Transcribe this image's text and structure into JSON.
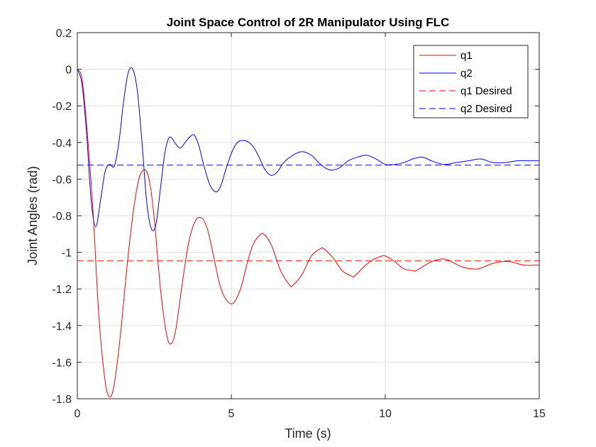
{
  "figure": {
    "background": "#ffffff",
    "axes_color": "#262626",
    "grid_color": "#dfdfdf"
  },
  "chart_data": {
    "type": "line",
    "title": "Joint Space Control of 2R Manipulator Using FLC",
    "xlabel": "Time (s)",
    "ylabel": "Joint Angles (rad)",
    "xlim": [
      0,
      15
    ],
    "ylim": [
      -1.8,
      0.2
    ],
    "xticks": [
      0,
      5,
      10,
      15
    ],
    "xtick_labels": [
      "0",
      "5",
      "10",
      "15"
    ],
    "yticks": [
      0.2,
      0,
      -0.2,
      -0.4,
      -0.6,
      -0.8,
      -1,
      -1.2,
      -1.4,
      -1.6,
      -1.8
    ],
    "ytick_labels": [
      "0.2",
      "0",
      "-0.2",
      "-0.4",
      "-0.6",
      "-0.8",
      "-1",
      "-1.2",
      "-1.4",
      "-1.6",
      "-1.8"
    ],
    "grid": true,
    "legend_position": "top-right",
    "series": [
      {
        "name": "q1",
        "color": "#ff0000",
        "style": "solid",
        "x": [
          0,
          0.15,
          0.3,
          0.5,
          0.7,
          0.9,
          1.05,
          1.2,
          1.4,
          1.6,
          1.8,
          2.0,
          2.2,
          2.35,
          2.5,
          2.7,
          2.9,
          3.05,
          3.2,
          3.4,
          3.6,
          3.8,
          4.0,
          4.2,
          4.4,
          4.6,
          4.8,
          5.05,
          5.3,
          5.5,
          5.7,
          5.9,
          6.05,
          6.3,
          6.6,
          6.9,
          7.0,
          7.3,
          7.6,
          7.9,
          8.0,
          8.3,
          8.6,
          8.9,
          9.0,
          9.3,
          9.6,
          9.9,
          10.0,
          10.3,
          10.6,
          10.9,
          11.0,
          11.4,
          11.7,
          12.0,
          12.5,
          13.0,
          13.5,
          14.0,
          14.5,
          15.0
        ],
        "y": [
          0,
          -0.05,
          -0.3,
          -0.75,
          -1.35,
          -1.7,
          -1.79,
          -1.72,
          -1.45,
          -1.1,
          -0.8,
          -0.6,
          -0.55,
          -0.62,
          -0.82,
          -1.2,
          -1.45,
          -1.5,
          -1.42,
          -1.18,
          -0.96,
          -0.84,
          -0.81,
          -0.86,
          -1.0,
          -1.16,
          -1.25,
          -1.28,
          -1.2,
          -1.07,
          -0.96,
          -0.91,
          -0.9,
          -0.96,
          -1.1,
          -1.18,
          -1.18,
          -1.12,
          -1.02,
          -0.98,
          -0.98,
          -1.03,
          -1.1,
          -1.13,
          -1.13,
          -1.08,
          -1.04,
          -1.02,
          -1.02,
          -1.05,
          -1.09,
          -1.1,
          -1.1,
          -1.06,
          -1.04,
          -1.04,
          -1.08,
          -1.09,
          -1.06,
          -1.05,
          -1.07,
          -1.07
        ]
      },
      {
        "name": "q2",
        "color": "#0000ff",
        "style": "solid",
        "x": [
          0,
          0.15,
          0.3,
          0.45,
          0.6,
          0.75,
          0.9,
          1.05,
          1.2,
          1.35,
          1.5,
          1.65,
          1.8,
          1.95,
          2.1,
          2.25,
          2.4,
          2.55,
          2.7,
          2.85,
          3.0,
          3.2,
          3.35,
          3.5,
          3.65,
          3.8,
          3.95,
          4.1,
          4.3,
          4.5,
          4.65,
          4.8,
          5.0,
          5.2,
          5.45,
          5.7,
          5.9,
          6.1,
          6.3,
          6.5,
          6.7,
          7.0,
          7.3,
          7.6,
          7.9,
          8.2,
          8.5,
          8.8,
          9.1,
          9.4,
          9.7,
          10.0,
          10.3,
          10.6,
          10.9,
          11.2,
          11.5,
          11.9,
          12.3,
          12.7,
          13.1,
          13.5,
          13.9,
          14.3,
          14.7,
          15.0
        ],
        "y": [
          0,
          -0.08,
          -0.35,
          -0.72,
          -0.86,
          -0.72,
          -0.56,
          -0.52,
          -0.53,
          -0.4,
          -0.18,
          -0.02,
          0.0,
          -0.12,
          -0.4,
          -0.72,
          -0.87,
          -0.85,
          -0.65,
          -0.45,
          -0.37,
          -0.41,
          -0.43,
          -0.4,
          -0.37,
          -0.36,
          -0.42,
          -0.52,
          -0.63,
          -0.67,
          -0.64,
          -0.56,
          -0.46,
          -0.4,
          -0.39,
          -0.42,
          -0.48,
          -0.55,
          -0.58,
          -0.56,
          -0.51,
          -0.47,
          -0.45,
          -0.47,
          -0.52,
          -0.55,
          -0.54,
          -0.5,
          -0.48,
          -0.47,
          -0.49,
          -0.52,
          -0.52,
          -0.51,
          -0.49,
          -0.48,
          -0.5,
          -0.52,
          -0.51,
          -0.5,
          -0.49,
          -0.51,
          -0.51,
          -0.5,
          -0.5,
          -0.5
        ]
      },
      {
        "name": "q1 Desired",
        "color": "#ff0000",
        "style": "dashed",
        "x": [
          0,
          15
        ],
        "y": [
          -1.047,
          -1.047
        ]
      },
      {
        "name": "q2 Desired",
        "color": "#0000ff",
        "style": "dashed",
        "x": [
          0,
          15
        ],
        "y": [
          -0.524,
          -0.524
        ]
      }
    ]
  }
}
